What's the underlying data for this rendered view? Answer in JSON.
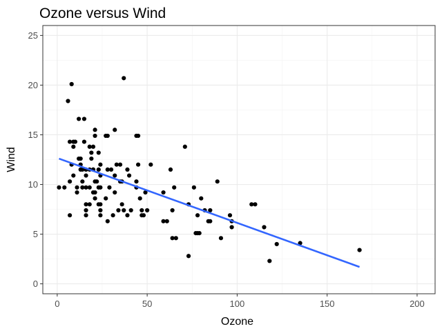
{
  "chart_data": {
    "type": "scatter",
    "title": "Ozone versus Wind",
    "xlabel": "Ozone",
    "ylabel": "Wind",
    "xlim": [
      -8,
      210
    ],
    "ylim": [
      -1,
      26
    ],
    "x_ticks": [
      0,
      50,
      100,
      150,
      200
    ],
    "y_ticks": [
      0,
      5,
      10,
      15,
      20,
      25
    ],
    "x_tick_labels": [
      "0",
      "50",
      "100",
      "150",
      "200"
    ],
    "y_tick_labels": [
      "0",
      "5",
      "10",
      "15",
      "20",
      "25"
    ],
    "grid": true,
    "points": [
      [
        1,
        9.7
      ],
      [
        4,
        9.7
      ],
      [
        6,
        18.4
      ],
      [
        7,
        6.9
      ],
      [
        7,
        14.3
      ],
      [
        7,
        10.3
      ],
      [
        8,
        20.1
      ],
      [
        8,
        12.0
      ],
      [
        9,
        13.8
      ],
      [
        9,
        14.3
      ],
      [
        9,
        10.9
      ],
      [
        10,
        14.3
      ],
      [
        11,
        9.7
      ],
      [
        11,
        9.2
      ],
      [
        12,
        16.6
      ],
      [
        12,
        12.6
      ],
      [
        13,
        12.0
      ],
      [
        13,
        12.6
      ],
      [
        13,
        11.5
      ],
      [
        14,
        11.5
      ],
      [
        14,
        10.3
      ],
      [
        14,
        9.7
      ],
      [
        15,
        14.3
      ],
      [
        15,
        16.6
      ],
      [
        16,
        11.5
      ],
      [
        16,
        9.7
      ],
      [
        16,
        10.9
      ],
      [
        16,
        8.0
      ],
      [
        16,
        7.4
      ],
      [
        16,
        6.9
      ],
      [
        18,
        9.7
      ],
      [
        18,
        13.8
      ],
      [
        18,
        11.5
      ],
      [
        18,
        8.0
      ],
      [
        19,
        13.2
      ],
      [
        19,
        12.6
      ],
      [
        20,
        11.5
      ],
      [
        20,
        9.2
      ],
      [
        20,
        13.8
      ],
      [
        20,
        11.5
      ],
      [
        21,
        8.6
      ],
      [
        21,
        10.3
      ],
      [
        21,
        9.2
      ],
      [
        21,
        15.5
      ],
      [
        21,
        14.9
      ],
      [
        22,
        10.3
      ],
      [
        23,
        11.5
      ],
      [
        23,
        13.2
      ],
      [
        23,
        9.7
      ],
      [
        23,
        8.0
      ],
      [
        24,
        12.0
      ],
      [
        24,
        8.0
      ],
      [
        24,
        10.9
      ],
      [
        24,
        7.4
      ],
      [
        24,
        6.9
      ],
      [
        24,
        9.7
      ],
      [
        27,
        14.9
      ],
      [
        27,
        8.6
      ],
      [
        28,
        11.5
      ],
      [
        28,
        14.9
      ],
      [
        28,
        6.3
      ],
      [
        29,
        9.7
      ],
      [
        30,
        11.5
      ],
      [
        31,
        6.9
      ],
      [
        32,
        10.9
      ],
      [
        32,
        9.2
      ],
      [
        32,
        15.5
      ],
      [
        33,
        12.0
      ],
      [
        34,
        7.4
      ],
      [
        35,
        10.3
      ],
      [
        35,
        12.0
      ],
      [
        36,
        10.3
      ],
      [
        36,
        8.0
      ],
      [
        37,
        20.7
      ],
      [
        37,
        7.4
      ],
      [
        39,
        6.9
      ],
      [
        39,
        11.5
      ],
      [
        40,
        10.9
      ],
      [
        41,
        7.4
      ],
      [
        44,
        9.7
      ],
      [
        44,
        14.9
      ],
      [
        44,
        10.3
      ],
      [
        45,
        14.9
      ],
      [
        45,
        12.0
      ],
      [
        46,
        8.6
      ],
      [
        47,
        6.9
      ],
      [
        47,
        7.4
      ],
      [
        48,
        6.9
      ],
      [
        49,
        9.2
      ],
      [
        50,
        7.4
      ],
      [
        52,
        12.0
      ],
      [
        59,
        9.2
      ],
      [
        59,
        6.3
      ],
      [
        61,
        6.3
      ],
      [
        63,
        11.5
      ],
      [
        64,
        7.4
      ],
      [
        64,
        4.6
      ],
      [
        65,
        9.7
      ],
      [
        66,
        4.6
      ],
      [
        71,
        13.8
      ],
      [
        73,
        8.0
      ],
      [
        73,
        2.8
      ],
      [
        76,
        9.7
      ],
      [
        77,
        5.1
      ],
      [
        78,
        6.9
      ],
      [
        78,
        5.1
      ],
      [
        79,
        5.1
      ],
      [
        80,
        8.6
      ],
      [
        82,
        7.4
      ],
      [
        84,
        6.3
      ],
      [
        85,
        6.3
      ],
      [
        85,
        7.4
      ],
      [
        89,
        10.3
      ],
      [
        91,
        4.6
      ],
      [
        96,
        6.9
      ],
      [
        97,
        5.7
      ],
      [
        97,
        6.3
      ],
      [
        108,
        8.0
      ],
      [
        110,
        8.0
      ],
      [
        115,
        5.7
      ],
      [
        118,
        2.3
      ],
      [
        122,
        4.0
      ],
      [
        135,
        4.1
      ],
      [
        168,
        3.4
      ]
    ],
    "fit_line": {
      "x": [
        1,
        168
      ],
      "y": [
        12.6,
        1.7
      ]
    },
    "colors": {
      "points": "#000000",
      "fit": "#3366FF",
      "grid": "#ebebeb",
      "border": "#333333"
    }
  }
}
